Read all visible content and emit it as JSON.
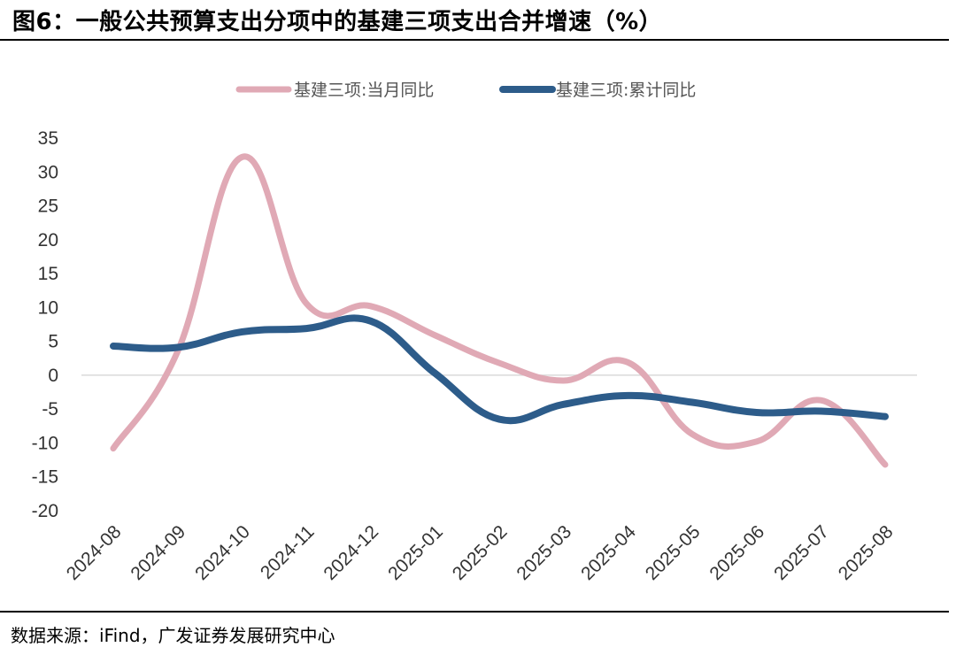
{
  "title": "图6：一般公共预算支出分项中的基建三项支出合并增速（%）",
  "source": "数据来源：iFind，广发证券发展研究中心",
  "chart_data": {
    "type": "line",
    "categories": [
      "2024-08",
      "2024-09",
      "2024-10",
      "2024-11",
      "2024-12",
      "2025-01",
      "2025-02",
      "2025-03",
      "2025-04",
      "2025-05",
      "2025-06",
      "2025-07",
      "2025-08"
    ],
    "series": [
      {
        "name": "基建三项:当月同比",
        "color": "#E0A9B5",
        "values": [
          -10.8,
          3.5,
          32.2,
          10.6,
          10.2,
          5.9,
          1.8,
          -0.8,
          1.9,
          -8.7,
          -9.8,
          -3.7,
          -13.2
        ]
      },
      {
        "name": "基建三项:累计同比",
        "color": "#2D5C8A",
        "values": [
          4.3,
          4.1,
          6.4,
          6.9,
          8.0,
          0.3,
          -6.5,
          -4.3,
          -3.0,
          -4.0,
          -5.5,
          -5.3,
          -6.1
        ]
      }
    ],
    "ylim": [
      -20,
      35
    ],
    "yticks": [
      35,
      30,
      25,
      20,
      15,
      10,
      5,
      0,
      -5,
      -10,
      -15,
      -20
    ],
    "legend": "top-center"
  }
}
